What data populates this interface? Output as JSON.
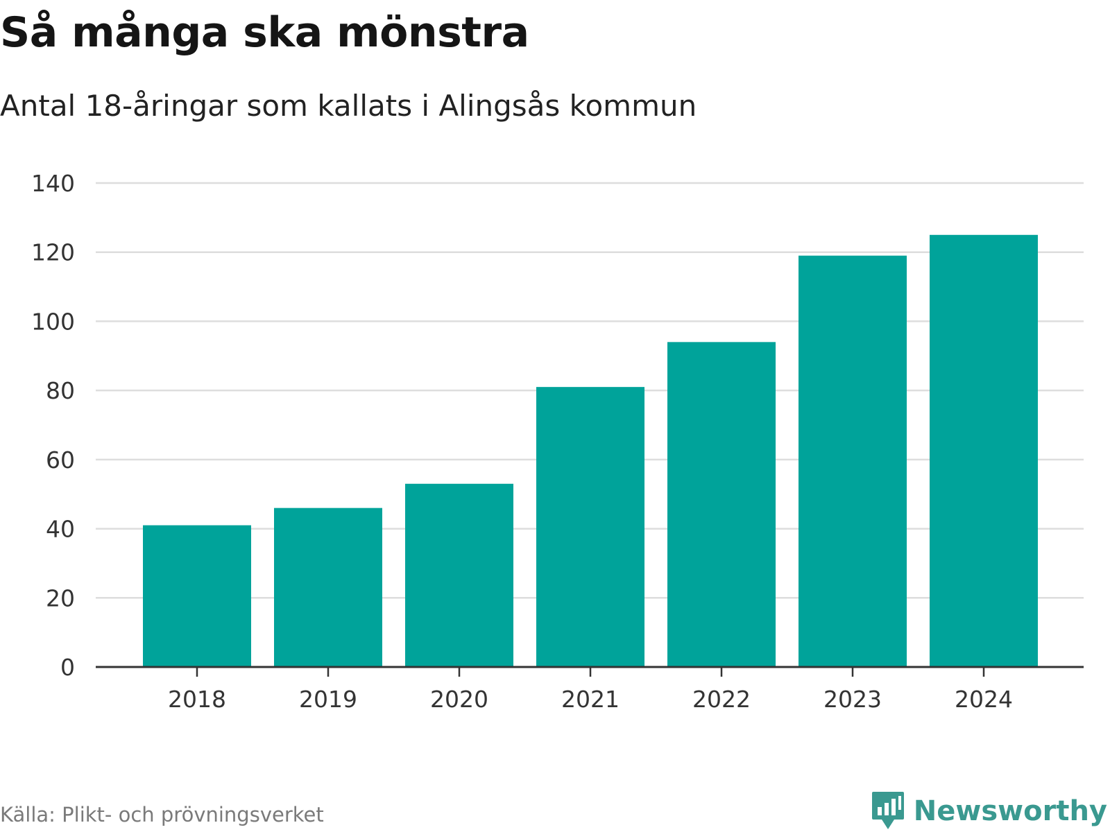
{
  "header": {
    "title": "Så många ska mönstra",
    "subtitle": "Antal 18-åringar som kallats i Alingsås kommun"
  },
  "footer": {
    "source": "Källa: Plikt- och prövningsverket",
    "brand": "Newsworthy",
    "brand_icon": "chat-bubble-bar-chart-icon"
  },
  "colors": {
    "bar": "#00a39a",
    "grid": "#dddddd",
    "axis": "#333333",
    "brand": "#3a9990"
  },
  "chart_data": {
    "type": "bar",
    "title": "Så många ska mönstra",
    "subtitle": "Antal 18-åringar som kallats i Alingsås kommun",
    "xlabel": "",
    "ylabel": "",
    "categories": [
      "2018",
      "2019",
      "2020",
      "2021",
      "2022",
      "2023",
      "2024"
    ],
    "values": [
      41,
      46,
      53,
      81,
      94,
      119,
      125
    ],
    "ylim": [
      0,
      140
    ],
    "yticks": [
      0,
      20,
      40,
      60,
      80,
      100,
      120,
      140
    ],
    "grid": true,
    "legend": "none"
  }
}
